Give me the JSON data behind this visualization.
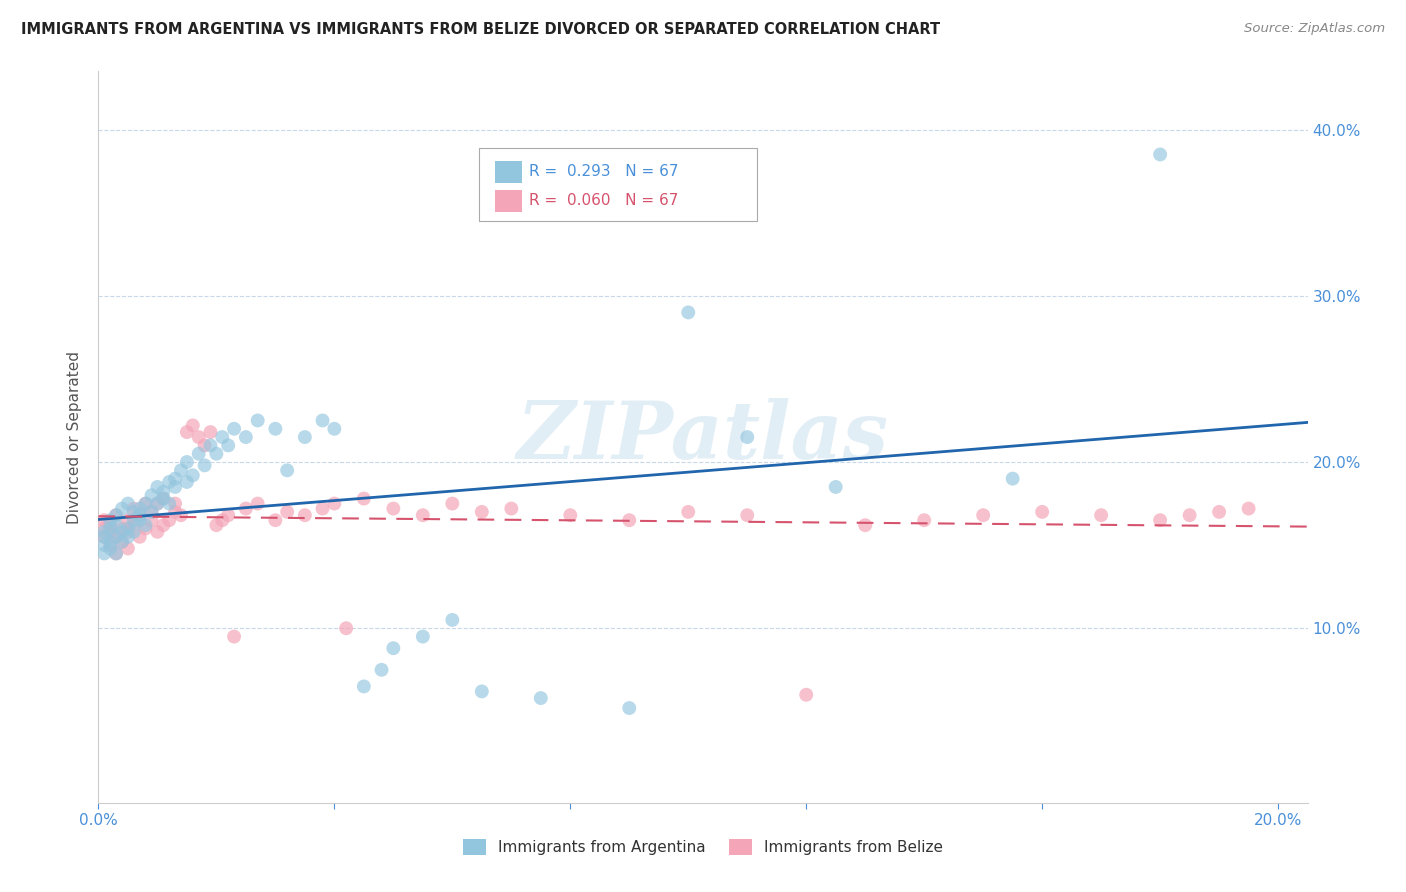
{
  "title": "IMMIGRANTS FROM ARGENTINA VS IMMIGRANTS FROM BELIZE DIVORCED OR SEPARATED CORRELATION CHART",
  "source": "Source: ZipAtlas.com",
  "ylabel": "Divorced or Separated",
  "watermark": "ZIPatlas",
  "xlim": [
    0.0,
    0.205
  ],
  "ylim": [
    -0.005,
    0.435
  ],
  "argentina_color": "#92c5de",
  "belize_color": "#f4a6b8",
  "argentina_line_color": "#2166ac",
  "belize_line_color": "#d6536d",
  "argentina_scatter_x": [
    0.001,
    0.001,
    0.001,
    0.001,
    0.002,
    0.002,
    0.002,
    0.002,
    0.003,
    0.003,
    0.003,
    0.003,
    0.004,
    0.004,
    0.004,
    0.005,
    0.005,
    0.005,
    0.006,
    0.006,
    0.006,
    0.007,
    0.007,
    0.007,
    0.008,
    0.008,
    0.009,
    0.009,
    0.01,
    0.01,
    0.011,
    0.011,
    0.012,
    0.012,
    0.013,
    0.013,
    0.014,
    0.015,
    0.015,
    0.016,
    0.017,
    0.018,
    0.019,
    0.02,
    0.021,
    0.022,
    0.023,
    0.025,
    0.027,
    0.03,
    0.032,
    0.035,
    0.038,
    0.04,
    0.045,
    0.048,
    0.05,
    0.055,
    0.06,
    0.065,
    0.075,
    0.09,
    0.1,
    0.11,
    0.125,
    0.155,
    0.18
  ],
  "argentina_scatter_y": [
    0.15,
    0.155,
    0.158,
    0.145,
    0.152,
    0.148,
    0.16,
    0.165,
    0.155,
    0.162,
    0.145,
    0.168,
    0.158,
    0.172,
    0.152,
    0.16,
    0.155,
    0.175,
    0.165,
    0.17,
    0.158,
    0.172,
    0.165,
    0.168,
    0.175,
    0.162,
    0.18,
    0.17,
    0.175,
    0.185,
    0.182,
    0.178,
    0.188,
    0.175,
    0.19,
    0.185,
    0.195,
    0.188,
    0.2,
    0.192,
    0.205,
    0.198,
    0.21,
    0.205,
    0.215,
    0.21,
    0.22,
    0.215,
    0.225,
    0.22,
    0.195,
    0.215,
    0.225,
    0.22,
    0.065,
    0.075,
    0.088,
    0.095,
    0.105,
    0.062,
    0.058,
    0.052,
    0.29,
    0.215,
    0.185,
    0.19,
    0.385
  ],
  "belize_scatter_x": [
    0.001,
    0.001,
    0.001,
    0.002,
    0.002,
    0.002,
    0.003,
    0.003,
    0.003,
    0.004,
    0.004,
    0.005,
    0.005,
    0.005,
    0.006,
    0.006,
    0.007,
    0.007,
    0.008,
    0.008,
    0.009,
    0.009,
    0.01,
    0.01,
    0.011,
    0.011,
    0.012,
    0.013,
    0.013,
    0.014,
    0.015,
    0.016,
    0.017,
    0.018,
    0.019,
    0.02,
    0.021,
    0.022,
    0.023,
    0.025,
    0.027,
    0.03,
    0.032,
    0.035,
    0.038,
    0.04,
    0.042,
    0.045,
    0.05,
    0.055,
    0.06,
    0.065,
    0.07,
    0.08,
    0.09,
    0.1,
    0.11,
    0.12,
    0.13,
    0.14,
    0.15,
    0.16,
    0.17,
    0.18,
    0.185,
    0.19,
    0.195
  ],
  "belize_scatter_y": [
    0.155,
    0.16,
    0.165,
    0.15,
    0.158,
    0.162,
    0.145,
    0.155,
    0.168,
    0.152,
    0.16,
    0.148,
    0.165,
    0.158,
    0.162,
    0.172,
    0.155,
    0.168,
    0.16,
    0.175,
    0.165,
    0.17,
    0.158,
    0.175,
    0.162,
    0.178,
    0.165,
    0.17,
    0.175,
    0.168,
    0.218,
    0.222,
    0.215,
    0.21,
    0.218,
    0.162,
    0.165,
    0.168,
    0.095,
    0.172,
    0.175,
    0.165,
    0.17,
    0.168,
    0.172,
    0.175,
    0.1,
    0.178,
    0.172,
    0.168,
    0.175,
    0.17,
    0.172,
    0.168,
    0.165,
    0.17,
    0.168,
    0.06,
    0.162,
    0.165,
    0.168,
    0.17,
    0.168,
    0.165,
    0.168,
    0.17,
    0.172
  ]
}
